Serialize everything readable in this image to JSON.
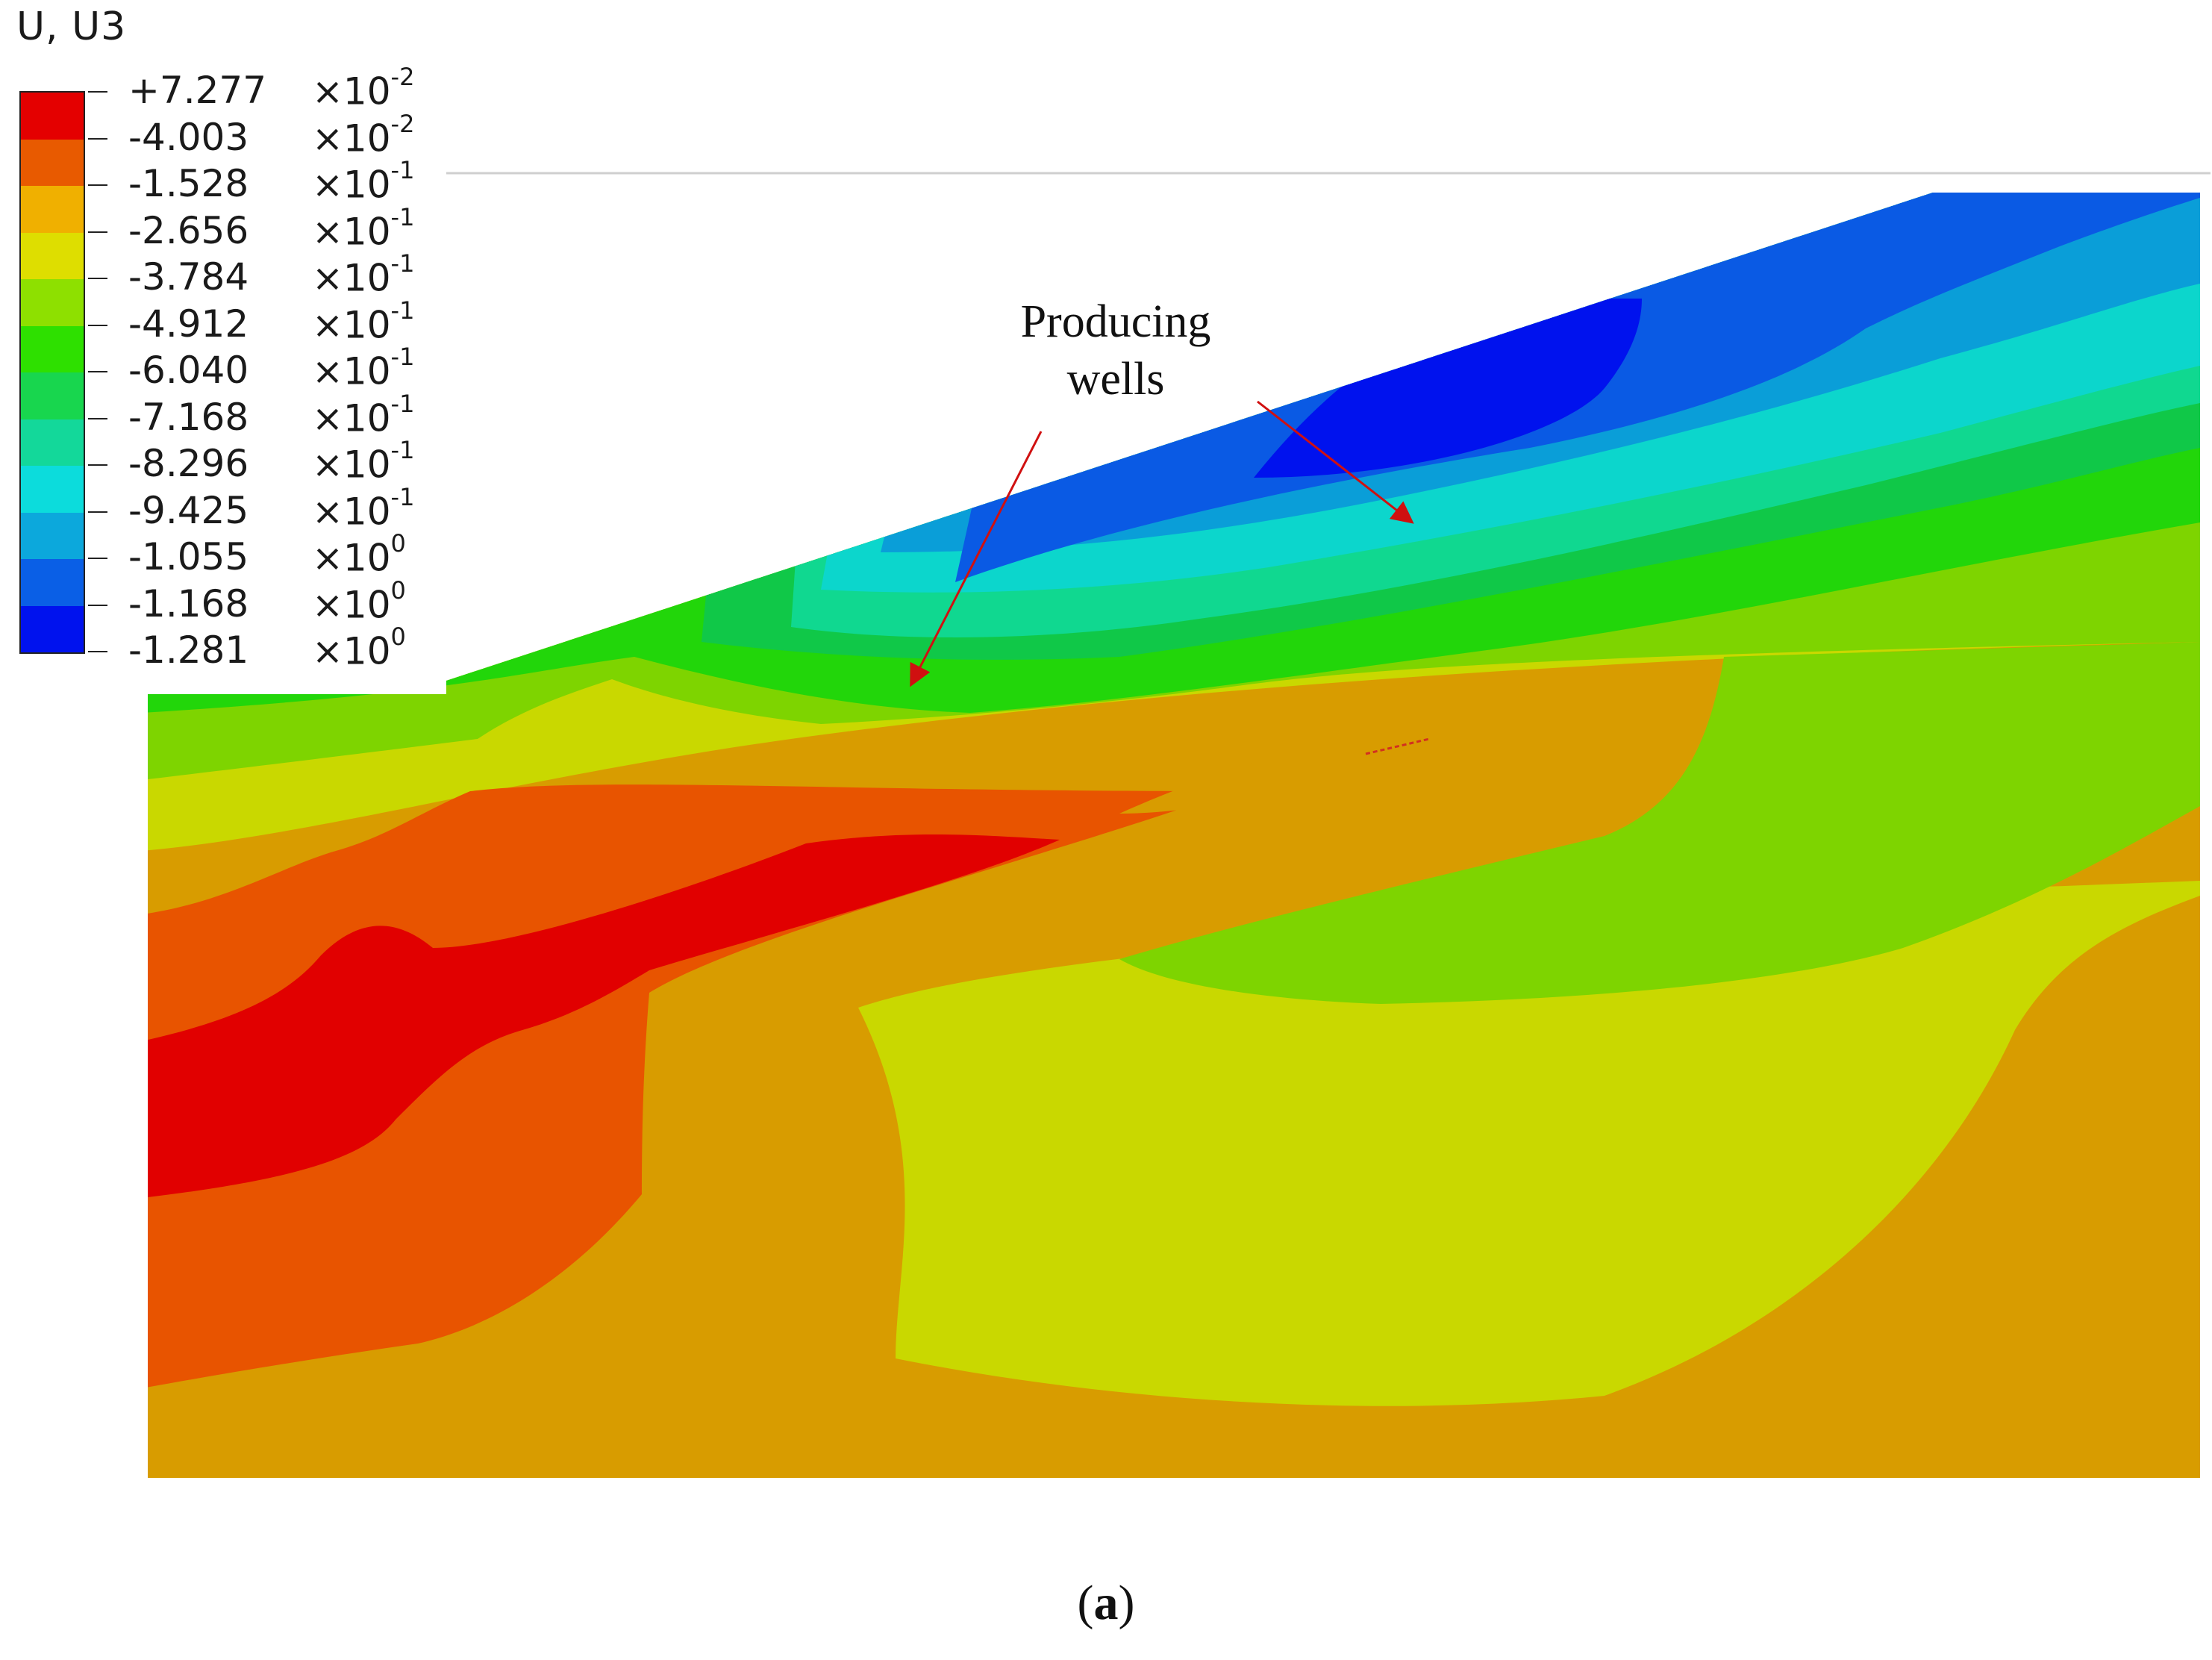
{
  "legend": {
    "title": "U, U3",
    "colors": [
      "#e40000",
      "#e85a00",
      "#f0b000",
      "#dede00",
      "#8ee000",
      "#2ee000",
      "#18d64e",
      "#13d89a",
      "#0cdcdc",
      "#0ca8dc",
      "#0a5fe6",
      "#0012ee"
    ],
    "entries": [
      {
        "value": "+7.277",
        "base": "×10",
        "exp": "-2"
      },
      {
        "value": "-4.003",
        "base": "×10",
        "exp": "-2"
      },
      {
        "value": "-1.528",
        "base": "×10",
        "exp": "-1"
      },
      {
        "value": "-2.656",
        "base": "×10",
        "exp": "-1"
      },
      {
        "value": "-3.784",
        "base": "×10",
        "exp": "-1"
      },
      {
        "value": "-4.912",
        "base": "×10",
        "exp": "-1"
      },
      {
        "value": "-6.040",
        "base": "×10",
        "exp": "-1"
      },
      {
        "value": "-7.168",
        "base": "×10",
        "exp": "-1"
      },
      {
        "value": "-8.296",
        "base": "×10",
        "exp": "-1"
      },
      {
        "value": "-9.425",
        "base": "×10",
        "exp": "-1"
      },
      {
        "value": "-1.055",
        "base": "×10",
        "exp": "0"
      },
      {
        "value": "-1.168",
        "base": "×10",
        "exp": "0"
      },
      {
        "value": "-1.281",
        "base": "×10",
        "exp": "0"
      }
    ]
  },
  "annotation": {
    "line1": "Producing",
    "line2": "wells",
    "arrow_color": "#d01010"
  },
  "caption": {
    "open": "(",
    "letter": "a",
    "close": ")"
  }
}
